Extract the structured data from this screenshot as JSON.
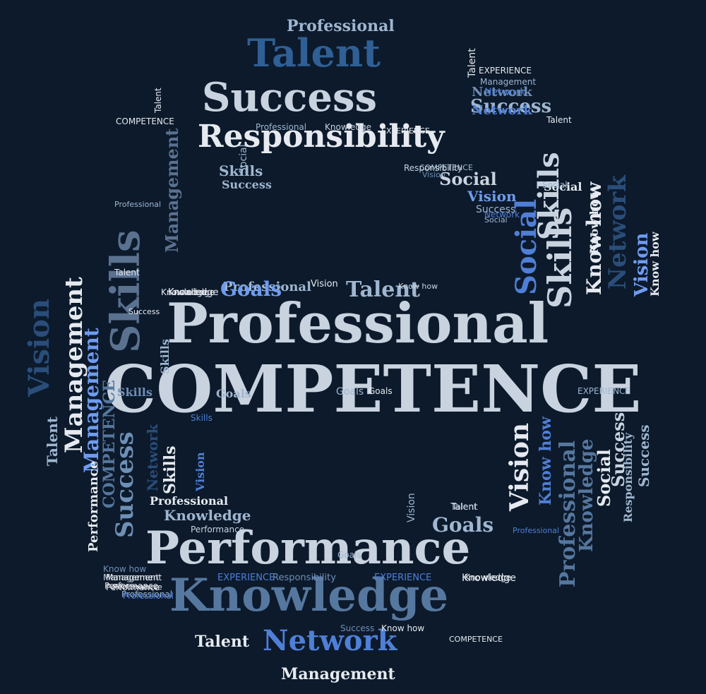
{
  "cloud": {
    "background": "#0c1a2b",
    "palette": {
      "white": "#e6eaf0",
      "pale": "#c9d3df",
      "light": "#9fb6d0",
      "mid": "#6e8fb6",
      "steel": "#56779e",
      "blue": "#4f7fd6",
      "bright": "#6f9cf0",
      "deep": "#2f5f95",
      "navy": "#2a4d79",
      "slate": "#5b7190"
    },
    "words": [
      {
        "text": "COMPETENCE",
        "color": "pale"
      },
      {
        "text": "Professional",
        "color": "pale"
      },
      {
        "text": "Performance",
        "color": "pale"
      },
      {
        "text": "Knowledge",
        "color": "steel"
      },
      {
        "text": "Success",
        "color": "pale"
      },
      {
        "text": "Talent",
        "color": "deep"
      },
      {
        "text": "Responsibility",
        "color": "white"
      },
      {
        "text": "Network",
        "color": "blue"
      },
      {
        "text": "Management",
        "color": "white"
      },
      {
        "text": "Professional",
        "color": "light"
      },
      {
        "text": "Talent",
        "color": "light"
      },
      {
        "text": "Goals",
        "color": "bright"
      },
      {
        "text": "Skills",
        "color": "slate"
      },
      {
        "text": "Vision",
        "color": "navy"
      },
      {
        "text": "Management",
        "color": "bright"
      },
      {
        "text": "Skills",
        "color": "light"
      },
      {
        "text": "Management",
        "color": "slate"
      },
      {
        "text": "Skills",
        "color": "pale"
      },
      {
        "text": "Success",
        "color": "light"
      },
      {
        "text": "Social",
        "color": "pale"
      },
      {
        "text": "Vision",
        "color": "bright"
      },
      {
        "text": "Success",
        "color": "light"
      },
      {
        "text": "Social",
        "color": "white"
      },
      {
        "text": "Skills",
        "color": "pale"
      },
      {
        "text": "Social",
        "color": "blue"
      },
      {
        "text": "Know how",
        "color": "white"
      },
      {
        "text": "Network",
        "color": "navy"
      },
      {
        "text": "Vision",
        "color": "bright"
      },
      {
        "text": "Know how",
        "color": "white"
      },
      {
        "text": "Success",
        "color": "pale"
      },
      {
        "text": "Network",
        "color": "blue"
      },
      {
        "text": "Talent",
        "color": "white"
      },
      {
        "text": "Vision",
        "color": "white"
      },
      {
        "text": "Knowledge",
        "color": "steel"
      },
      {
        "text": "Social",
        "color": "white"
      },
      {
        "text": "Professional",
        "color": "steel"
      },
      {
        "text": "Know how",
        "color": "blue"
      },
      {
        "text": "Responsibility",
        "color": "light"
      },
      {
        "text": "Success",
        "color": "light"
      },
      {
        "text": "Skills",
        "color": "white"
      },
      {
        "text": "Network",
        "color": "navy"
      },
      {
        "text": "Success",
        "color": "mid"
      },
      {
        "text": "COMPETENCE",
        "color": "steel"
      },
      {
        "text": "Vision",
        "color": "blue"
      },
      {
        "text": "Performance",
        "color": "white"
      },
      {
        "text": "Talent",
        "color": "light"
      },
      {
        "text": "Goals",
        "color": "light"
      },
      {
        "text": "Knowledge",
        "color": "light"
      },
      {
        "text": "Professional",
        "color": "white"
      },
      {
        "text": "Knowledge",
        "color": "white"
      },
      {
        "text": "Skills",
        "color": "light"
      },
      {
        "text": "Social",
        "color": "light"
      },
      {
        "text": "Know how",
        "color": "white"
      },
      {
        "text": "Performance",
        "color": "white"
      },
      {
        "text": "Knowledge",
        "color": "white"
      },
      {
        "text": "Professional",
        "color": "light"
      },
      {
        "text": "Success",
        "color": "light"
      },
      {
        "text": "Talent",
        "color": "light"
      },
      {
        "text": "Network",
        "color": "mid"
      },
      {
        "text": "Goals",
        "color": "light"
      },
      {
        "text": "Vision",
        "color": "light"
      },
      {
        "text": "Professional",
        "color": "light"
      },
      {
        "text": "EXPERIENCE",
        "color": "blue"
      },
      {
        "text": "Responsibility",
        "color": "mid"
      },
      {
        "text": "EXPERIENCE",
        "color": "blue"
      },
      {
        "text": "Knowledge",
        "color": "white"
      },
      {
        "text": "Management",
        "color": "pale"
      },
      {
        "text": "Performance",
        "color": "pale"
      },
      {
        "text": "Professional",
        "color": "blue"
      },
      {
        "text": "Know how",
        "color": "mid"
      },
      {
        "text": "Talent",
        "color": "white"
      },
      {
        "text": "Social",
        "color": "light"
      },
      {
        "text": "Know how",
        "color": "pale"
      },
      {
        "text": "Goals",
        "color": "light"
      },
      {
        "text": "Vision",
        "color": "white"
      },
      {
        "text": "Skills",
        "color": "mid"
      },
      {
        "text": "Performance",
        "color": "white"
      },
      {
        "text": "Professional",
        "color": "light"
      },
      {
        "text": "COMPETENCE",
        "color": "light"
      },
      {
        "text": "Professional",
        "color": "light"
      },
      {
        "text": "Knowledge",
        "color": "pale"
      },
      {
        "text": "Success",
        "color": "mid"
      },
      {
        "text": "Vision",
        "color": "mid"
      },
      {
        "text": "Professional",
        "color": "blue"
      },
      {
        "text": "Performance",
        "color": "white"
      },
      {
        "text": "Management",
        "color": "white"
      },
      {
        "text": "Talent",
        "color": "white"
      },
      {
        "text": "EXPERIENCE",
        "color": "white"
      },
      {
        "text": "Management",
        "color": "light"
      },
      {
        "text": "Knowledge",
        "color": "white"
      },
      {
        "text": "Responsibility",
        "color": "pale"
      },
      {
        "text": "Success",
        "color": "white"
      },
      {
        "text": "Talent",
        "color": "white"
      },
      {
        "text": "COMPETENCE",
        "color": "white"
      },
      {
        "text": "Network",
        "color": "blue"
      },
      {
        "text": "Skills",
        "color": "blue"
      },
      {
        "text": "Goals",
        "color": "white"
      },
      {
        "text": "EXPERIENCE",
        "color": "white"
      },
      {
        "text": "Management",
        "color": "white"
      },
      {
        "text": "Knowledge",
        "color": "white"
      },
      {
        "text": "Know how",
        "color": "white"
      },
      {
        "text": "COMPETENCE",
        "color": "white"
      },
      {
        "text": "Talent",
        "color": "pale"
      },
      {
        "text": "EXPERIENCE",
        "color": "light"
      },
      {
        "text": "Network",
        "color": "blue"
      },
      {
        "text": "Goals",
        "color": "light"
      },
      {
        "text": "Social",
        "color": "light"
      },
      {
        "text": "Talent",
        "color": "white"
      }
    ]
  }
}
